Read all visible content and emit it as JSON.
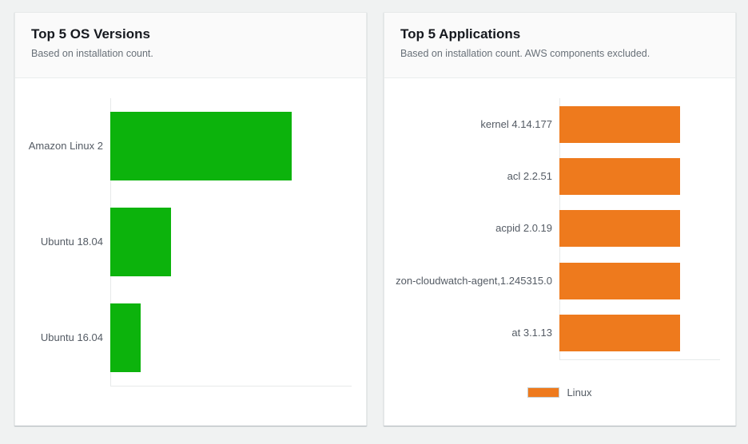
{
  "page": {
    "background_color": "#f0f2f2",
    "card_header_background": "#fafafa",
    "title_color": "#16191f",
    "subtitle_color": "#687078",
    "label_color": "#545b64",
    "axis_line_color": "#e7eaea"
  },
  "chart_data": [
    {
      "type": "bar",
      "orientation": "horizontal",
      "title": "Top 5 OS Versions",
      "subtitle": "Based on installation count.",
      "categories": [
        "Amazon Linux 2",
        "Ubuntu 18.04",
        "Ubuntu 16.04"
      ],
      "values": [
        6,
        2,
        1
      ],
      "xlim": [
        0,
        8
      ],
      "bar_color": "#0cb30c",
      "grid": false,
      "legend": null,
      "value_labels_shown": false
    },
    {
      "type": "bar",
      "orientation": "horizontal",
      "title": "Top 5 Applications",
      "subtitle": "Based on installation count. AWS components excluded.",
      "categories": [
        "kernel 4.14.177",
        "acl 2.2.51",
        "acpid 2.0.19",
        "zon-cloudwatch-agent,1.245315.0",
        "at 3.1.13"
      ],
      "values": [
        1,
        1,
        1,
        1,
        1
      ],
      "xlim": [
        0,
        1.333
      ],
      "bar_color": "#ee7a1d",
      "grid": false,
      "legend": [
        {
          "label": "Linux",
          "color": "#ee7a1d"
        }
      ],
      "legend_position": "bottom",
      "value_labels_shown": false
    }
  ]
}
